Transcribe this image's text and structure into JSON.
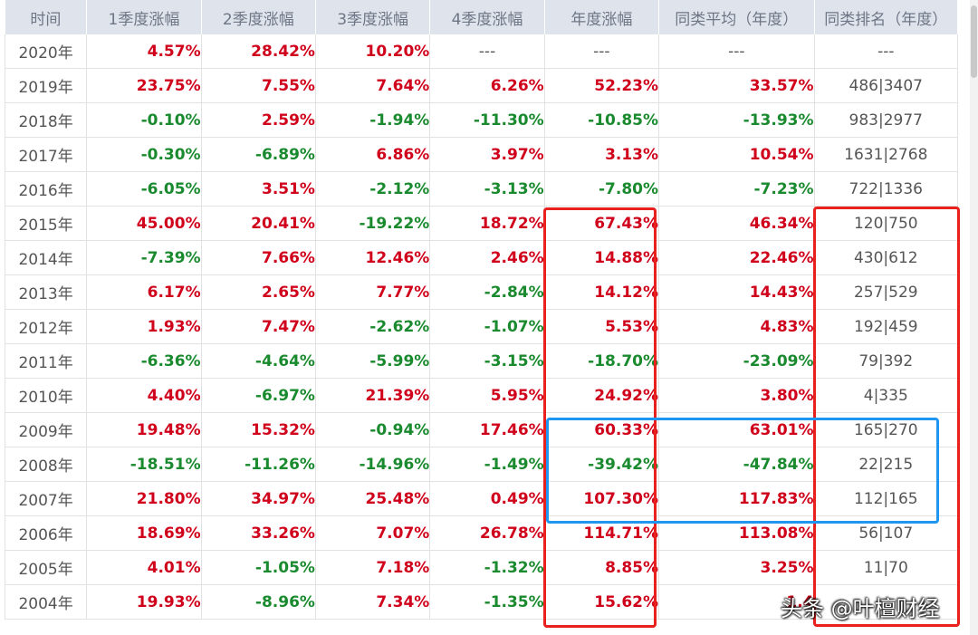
{
  "headers": [
    "时间",
    "1季度涨幅",
    "2季度涨幅",
    "3季度涨幅",
    "4季度涨幅",
    "年度涨幅",
    "同类平均（年度）",
    "同类排名（年度）"
  ],
  "rows": [
    {
      "year": "2020年",
      "q1": "4.57%",
      "q2": "28.42%",
      "q3": "10.20%",
      "q4": "---",
      "annual": "---",
      "avg": "---",
      "rank": "---"
    },
    {
      "year": "2019年",
      "q1": "23.75%",
      "q2": "7.55%",
      "q3": "7.64%",
      "q4": "6.26%",
      "annual": "52.23%",
      "avg": "33.57%",
      "rank": "486|3407"
    },
    {
      "year": "2018年",
      "q1": "-0.10%",
      "q2": "2.59%",
      "q3": "-1.94%",
      "q4": "-11.30%",
      "annual": "-10.85%",
      "avg": "-13.93%",
      "rank": "983|2977"
    },
    {
      "year": "2017年",
      "q1": "-0.30%",
      "q2": "-6.89%",
      "q3": "6.86%",
      "q4": "3.97%",
      "annual": "3.13%",
      "avg": "10.54%",
      "rank": "1631|2768"
    },
    {
      "year": "2016年",
      "q1": "-6.05%",
      "q2": "3.51%",
      "q3": "-2.12%",
      "q4": "-3.13%",
      "annual": "-7.80%",
      "avg": "-7.23%",
      "rank": "722|1336"
    },
    {
      "year": "2015年",
      "q1": "45.00%",
      "q2": "20.41%",
      "q3": "-19.22%",
      "q4": "18.72%",
      "annual": "67.43%",
      "avg": "46.34%",
      "rank": "120|750"
    },
    {
      "year": "2014年",
      "q1": "-7.39%",
      "q2": "7.66%",
      "q3": "12.46%",
      "q4": "2.46%",
      "annual": "14.88%",
      "avg": "22.46%",
      "rank": "430|612"
    },
    {
      "year": "2013年",
      "q1": "6.17%",
      "q2": "2.65%",
      "q3": "7.77%",
      "q4": "-2.84%",
      "annual": "14.12%",
      "avg": "14.43%",
      "rank": "257|529"
    },
    {
      "year": "2012年",
      "q1": "1.93%",
      "q2": "7.47%",
      "q3": "-2.62%",
      "q4": "-1.07%",
      "annual": "5.53%",
      "avg": "4.83%",
      "rank": "192|459"
    },
    {
      "year": "2011年",
      "q1": "-6.36%",
      "q2": "-4.64%",
      "q3": "-5.99%",
      "q4": "-3.15%",
      "annual": "-18.70%",
      "avg": "-23.09%",
      "rank": "79|392"
    },
    {
      "year": "2010年",
      "q1": "4.40%",
      "q2": "-6.97%",
      "q3": "21.39%",
      "q4": "5.95%",
      "annual": "24.92%",
      "avg": "3.80%",
      "rank": "4|335"
    },
    {
      "year": "2009年",
      "q1": "19.48%",
      "q2": "15.32%",
      "q3": "-0.94%",
      "q4": "17.46%",
      "annual": "60.33%",
      "avg": "63.01%",
      "rank": "165|270"
    },
    {
      "year": "2008年",
      "q1": "-18.51%",
      "q2": "-11.26%",
      "q3": "-14.96%",
      "q4": "-1.49%",
      "annual": "-39.42%",
      "avg": "-47.84%",
      "rank": "22|215"
    },
    {
      "year": "2007年",
      "q1": "21.80%",
      "q2": "34.97%",
      "q3": "25.48%",
      "q4": "0.49%",
      "annual": "107.30%",
      "avg": "117.83%",
      "rank": "112|165"
    },
    {
      "year": "2006年",
      "q1": "18.69%",
      "q2": "33.26%",
      "q3": "7.07%",
      "q4": "26.78%",
      "annual": "114.71%",
      "avg": "113.08%",
      "rank": "56|107"
    },
    {
      "year": "2005年",
      "q1": "4.01%",
      "q2": "-1.05%",
      "q3": "7.18%",
      "q4": "-1.32%",
      "annual": "8.85%",
      "avg": "3.25%",
      "rank": "11|70"
    },
    {
      "year": "2004年",
      "q1": "19.93%",
      "q2": "-8.96%",
      "q3": "7.34%",
      "q4": "-1.35%",
      "annual": "15.62%",
      "avg": "1.4",
      "rank": ""
    }
  ],
  "colors": {
    "positive": "#d0021b",
    "negative": "#1a8a2e",
    "highlight_red": "#e8201e",
    "highlight_blue": "#1f96f0"
  },
  "watermark": "头条 @叶檀财经"
}
